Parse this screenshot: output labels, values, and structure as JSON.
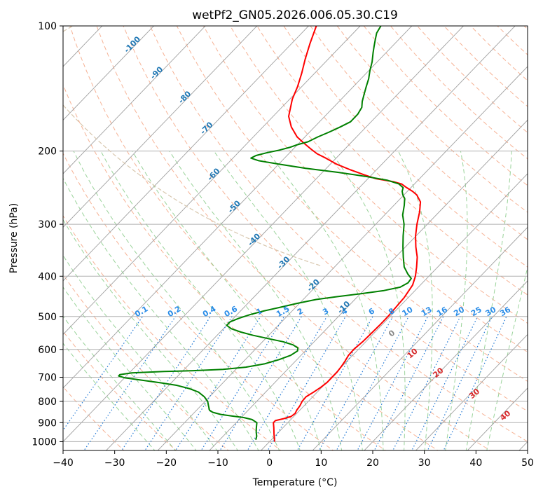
{
  "chart_data": {
    "type": "line",
    "title": "wetPf2_GN05.2026.006.05.30.C19",
    "xlabel": "Temperature (°C)",
    "ylabel": "Pressure (hPa)",
    "xlim": [
      -40,
      50
    ],
    "ylim": [
      1050,
      100
    ],
    "y_scale": "log",
    "x_ticks": [
      -40,
      -30,
      -20,
      -10,
      0,
      10,
      20,
      30,
      40,
      50
    ],
    "y_ticks": [
      100,
      200,
      300,
      400,
      500,
      600,
      700,
      800,
      900,
      1000
    ],
    "skew_note": "skew-T log-p diagram",
    "series": [
      {
        "color": "#ff0000",
        "points": [
          [
            1.0,
            1000
          ],
          [
            -0.5,
            960
          ],
          [
            -1.8,
            925
          ],
          [
            -2.8,
            900
          ],
          [
            -2.8,
            890
          ],
          [
            -1.5,
            880
          ],
          [
            -0.5,
            870
          ],
          [
            -0.3,
            855
          ],
          [
            -0.6,
            840
          ],
          [
            -0.8,
            820
          ],
          [
            -1.2,
            800
          ],
          [
            -1.3,
            780
          ],
          [
            -0.7,
            760
          ],
          [
            -0.2,
            740
          ],
          [
            0.1,
            720
          ],
          [
            0.1,
            700
          ],
          [
            0.1,
            680
          ],
          [
            -0.1,
            660
          ],
          [
            -0.4,
            640
          ],
          [
            -0.8,
            620
          ],
          [
            -0.9,
            600
          ],
          [
            -0.6,
            575
          ],
          [
            -0.5,
            550
          ],
          [
            -0.4,
            525
          ],
          [
            -0.4,
            500
          ],
          [
            -0.6,
            475
          ],
          [
            -0.8,
            450
          ],
          [
            -1.5,
            420
          ],
          [
            -2.6,
            400
          ],
          [
            -4.1,
            380
          ],
          [
            -5.8,
            360
          ],
          [
            -8.0,
            340
          ],
          [
            -10.1,
            320
          ],
          [
            -12.0,
            300
          ],
          [
            -13.8,
            280
          ],
          [
            -15.5,
            265
          ],
          [
            -17.5,
            255
          ],
          [
            -19.0,
            250
          ],
          [
            -20.8,
            245
          ],
          [
            -22.5,
            240
          ],
          [
            -24.5,
            237
          ],
          [
            -28.5,
            233
          ],
          [
            -31.5,
            228
          ],
          [
            -35.0,
            222
          ],
          [
            -38.8,
            215
          ],
          [
            -42.0,
            208
          ],
          [
            -44.5,
            203
          ],
          [
            -46.5,
            198
          ],
          [
            -48.8,
            192
          ],
          [
            -51.5,
            185
          ],
          [
            -54.5,
            175
          ],
          [
            -57.0,
            165
          ],
          [
            -59.5,
            150
          ],
          [
            -60.8,
            140
          ],
          [
            -62.5,
            130
          ],
          [
            -64.5,
            120
          ],
          [
            -66.5,
            110
          ],
          [
            -68.5,
            100
          ]
        ]
      },
      {
        "color": "#008000",
        "points": [
          [
            -3.0,
            990
          ],
          [
            -3.5,
            970
          ],
          [
            -4.3,
            950
          ],
          [
            -5.0,
            930
          ],
          [
            -5.5,
            915
          ],
          [
            -6.0,
            900
          ],
          [
            -7.5,
            885
          ],
          [
            -9.5,
            875
          ],
          [
            -12.0,
            868
          ],
          [
            -14.5,
            860
          ],
          [
            -16.5,
            850
          ],
          [
            -17.5,
            840
          ],
          [
            -18.0,
            830
          ],
          [
            -18.5,
            820
          ],
          [
            -19.5,
            800
          ],
          [
            -21.0,
            780
          ],
          [
            -23.0,
            760
          ],
          [
            -25.5,
            745
          ],
          [
            -28.5,
            732
          ],
          [
            -32.0,
            722
          ],
          [
            -36.0,
            712
          ],
          [
            -40.0,
            702
          ],
          [
            -41.5,
            695
          ],
          [
            -41.5,
            690
          ],
          [
            -39.5,
            683
          ],
          [
            -33.5,
            678
          ],
          [
            -28.0,
            675
          ],
          [
            -22.5,
            670
          ],
          [
            -18.5,
            662
          ],
          [
            -15.5,
            650
          ],
          [
            -13.5,
            635
          ],
          [
            -12.0,
            620
          ],
          [
            -11.5,
            605
          ],
          [
            -12.0,
            595
          ],
          [
            -13.5,
            585
          ],
          [
            -16.0,
            575
          ],
          [
            -19.5,
            565
          ],
          [
            -23.0,
            555
          ],
          [
            -26.0,
            545
          ],
          [
            -28.5,
            535
          ],
          [
            -30.0,
            525
          ],
          [
            -30.0,
            515
          ],
          [
            -29.0,
            505
          ],
          [
            -27.5,
            495
          ],
          [
            -25.5,
            485
          ],
          [
            -23.0,
            475
          ],
          [
            -20.5,
            465
          ],
          [
            -17.5,
            455
          ],
          [
            -14.0,
            448
          ],
          [
            -10.0,
            441
          ],
          [
            -6.0,
            433
          ],
          [
            -3.5,
            425
          ],
          [
            -2.8,
            415
          ],
          [
            -3.0,
            405
          ],
          [
            -4.5,
            395
          ],
          [
            -6.5,
            380
          ],
          [
            -8.5,
            360
          ],
          [
            -10.5,
            340
          ],
          [
            -12.5,
            320
          ],
          [
            -14.5,
            300
          ],
          [
            -16.5,
            285
          ],
          [
            -18.0,
            270
          ],
          [
            -19.2,
            260
          ],
          [
            -20.2,
            255
          ],
          [
            -21.0,
            250
          ],
          [
            -21.5,
            245
          ],
          [
            -23.0,
            240
          ],
          [
            -26.0,
            235
          ],
          [
            -31.0,
            230
          ],
          [
            -37.0,
            225
          ],
          [
            -44.0,
            220
          ],
          [
            -50.0,
            215
          ],
          [
            -54.5,
            211
          ],
          [
            -56.5,
            208
          ],
          [
            -56.0,
            205
          ],
          [
            -54.5,
            202
          ],
          [
            -52.5,
            199
          ],
          [
            -51.0,
            196
          ],
          [
            -50.0,
            193
          ],
          [
            -48.5,
            190
          ],
          [
            -47.5,
            185
          ],
          [
            -46.2,
            180
          ],
          [
            -45.0,
            175
          ],
          [
            -44.0,
            170
          ],
          [
            -44.0,
            163
          ],
          [
            -44.5,
            157
          ],
          [
            -45.5,
            152
          ],
          [
            -46.5,
            146
          ],
          [
            -47.5,
            140
          ],
          [
            -48.5,
            134
          ],
          [
            -49.8,
            128
          ],
          [
            -51.0,
            122
          ],
          [
            -52.5,
            116
          ],
          [
            -53.5,
            112
          ],
          [
            -54.5,
            108
          ],
          [
            -55.5,
            104
          ],
          [
            -56.0,
            100
          ]
        ]
      }
    ],
    "isotherm_labels": [
      "-100",
      "-90",
      "-80",
      "-70",
      "-60",
      "-50",
      "-40",
      "-30",
      "-20",
      "-10"
    ],
    "mixing_ratio_labels": [
      "0.1",
      "0.2",
      "0.4",
      "0.6",
      "1",
      "1.5",
      "2",
      "3",
      "4",
      "6",
      "8",
      "10",
      "13",
      "16",
      "20",
      "25",
      "30",
      "36"
    ],
    "wetbulb_labels": [
      "0",
      "10",
      "20",
      "30",
      "40"
    ]
  }
}
